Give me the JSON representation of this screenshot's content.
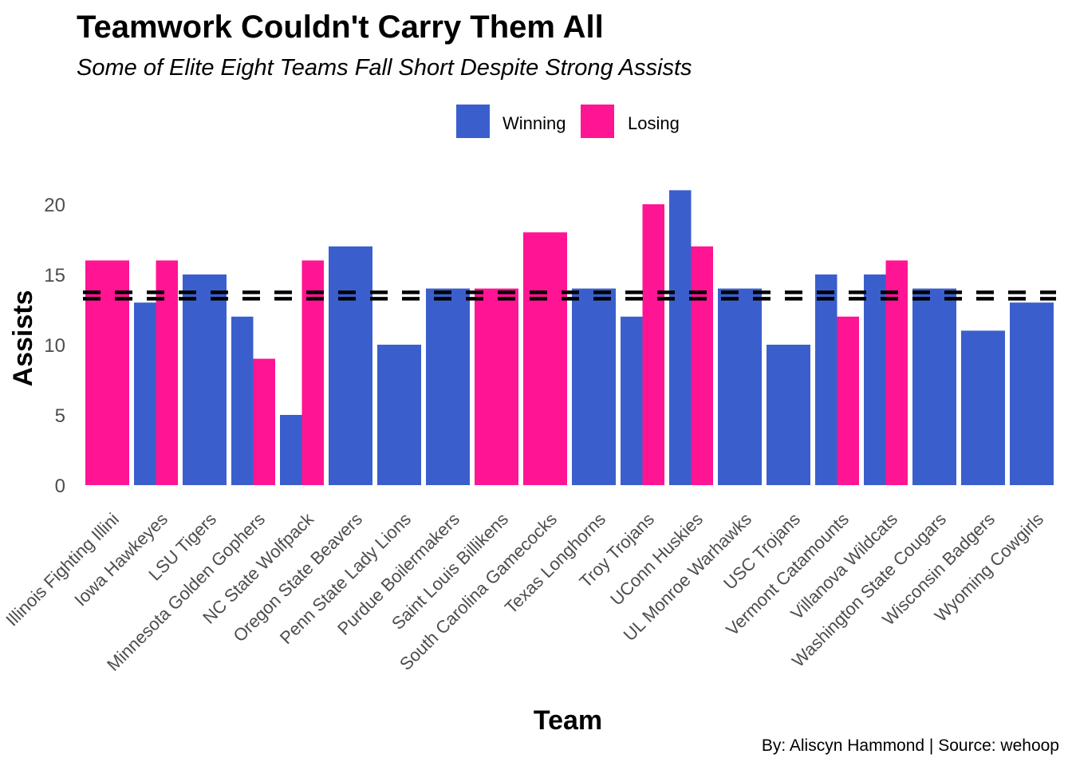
{
  "chart_data": {
    "type": "bar",
    "title": "Teamwork Couldn't Carry Them All",
    "subtitle": "Some of Elite Eight Teams Fall Short Despite Strong Assists",
    "xlabel": "Team",
    "ylabel": "Assists",
    "caption": "By: Aliscyn Hammond | Source: wehoop",
    "ylim": [
      0,
      23
    ],
    "yticks": [
      0,
      5,
      10,
      15,
      20
    ],
    "legend_position": "top",
    "reference_line": {
      "y": 13.5,
      "style": "dashed",
      "color": "#000000"
    },
    "colors": {
      "Winning": "#3A5FCD",
      "Losing": "#FF1493"
    },
    "legend": [
      {
        "key": "Winning",
        "label": "Winning"
      },
      {
        "key": "Losing",
        "label": "Losing"
      }
    ],
    "categories": [
      "Illinois Fighting Illini",
      "Iowa Hawkeyes",
      "LSU Tigers",
      "Minnesota Golden Gophers",
      "NC State Wolfpack",
      "Oregon State Beavers",
      "Penn State Lady Lions",
      "Purdue Boilermakers",
      "Saint Louis Billikens",
      "South Carolina Gamecocks",
      "Texas Longhorns",
      "Troy Trojans",
      "UConn Huskies",
      "UL Monroe Warhawks",
      "USC Trojans",
      "Vermont Catamounts",
      "Villanova Wildcats",
      "Washington State Cougars",
      "Wisconsin Badgers",
      "Wyoming Cowgirls"
    ],
    "series": [
      {
        "name": "Winning",
        "values": [
          null,
          13,
          15,
          12,
          5,
          17,
          10,
          14,
          null,
          null,
          14,
          12,
          21,
          14,
          10,
          15,
          15,
          14,
          11,
          13
        ]
      },
      {
        "name": "Losing",
        "values": [
          16,
          16,
          null,
          9,
          16,
          null,
          null,
          null,
          14,
          18,
          null,
          20,
          17,
          null,
          null,
          12,
          16,
          null,
          null,
          null
        ]
      }
    ]
  }
}
